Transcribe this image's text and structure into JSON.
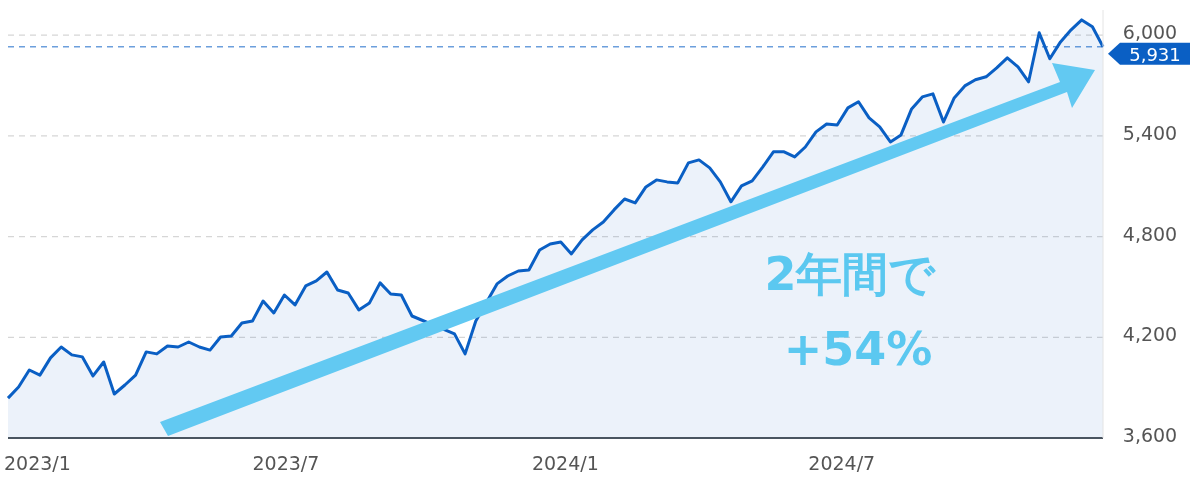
{
  "chart_data": {
    "type": "area",
    "xlim": [
      "2022-12-30",
      "2024-12-20"
    ],
    "ylim": [
      3600,
      6150
    ],
    "xticks": [
      {
        "value": "2023-01-01",
        "label": "2023/1"
      },
      {
        "value": "2023-07-01",
        "label": "2023/7"
      },
      {
        "value": "2024-01-01",
        "label": "2024/1"
      },
      {
        "value": "2024-07-01",
        "label": "2024/7"
      }
    ],
    "yticks": [
      {
        "value": 3600,
        "label": "3,600"
      },
      {
        "value": 4200,
        "label": "4,200"
      },
      {
        "value": 4800,
        "label": "4,800"
      },
      {
        "value": 5400,
        "label": "5,400"
      },
      {
        "value": 6000,
        "label": "6,000"
      }
    ],
    "grid": "y",
    "line_style": "solid",
    "x": [
      "2022-12-30",
      "2023-01-06",
      "2023-01-13",
      "2023-01-20",
      "2023-01-27",
      "2023-02-03",
      "2023-02-10",
      "2023-02-17",
      "2023-02-24",
      "2023-03-03",
      "2023-03-10",
      "2023-03-17",
      "2023-03-24",
      "2023-03-31",
      "2023-04-07",
      "2023-04-14",
      "2023-04-21",
      "2023-04-28",
      "2023-05-05",
      "2023-05-12",
      "2023-05-19",
      "2023-05-26",
      "2023-06-02",
      "2023-06-09",
      "2023-06-16",
      "2023-06-23",
      "2023-06-30",
      "2023-07-07",
      "2023-07-14",
      "2023-07-21",
      "2023-07-28",
      "2023-08-04",
      "2023-08-11",
      "2023-08-18",
      "2023-08-25",
      "2023-09-01",
      "2023-09-08",
      "2023-09-15",
      "2023-09-22",
      "2023-10-20",
      "2023-10-27",
      "2023-11-03",
      "2023-11-17",
      "2023-11-24",
      "2023-12-01",
      "2023-12-08",
      "2023-12-15",
      "2023-12-22",
      "2023-12-29",
      "2024-01-05",
      "2024-01-12",
      "2024-01-19",
      "2024-01-26",
      "2024-02-02",
      "2024-02-09",
      "2024-02-16",
      "2024-02-23",
      "2024-03-01",
      "2024-03-08",
      "2024-03-15",
      "2024-03-22",
      "2024-03-29",
      "2024-04-05",
      "2024-04-12",
      "2024-04-19",
      "2024-04-26",
      "2024-05-03",
      "2024-05-10",
      "2024-05-17",
      "2024-05-24",
      "2024-05-31",
      "2024-06-07",
      "2024-06-14",
      "2024-06-21",
      "2024-06-28",
      "2024-07-05",
      "2024-07-12",
      "2024-07-19",
      "2024-07-26",
      "2024-08-02",
      "2024-08-09",
      "2024-08-16",
      "2024-08-23",
      "2024-08-30",
      "2024-09-06",
      "2024-09-13",
      "2024-09-20",
      "2024-09-27",
      "2024-10-04",
      "2024-10-11",
      "2024-10-18",
      "2024-10-25",
      "2024-11-01",
      "2024-11-08",
      "2024-11-15",
      "2024-11-22",
      "2024-11-29",
      "2024-12-06",
      "2024-12-13",
      "2024-12-20"
    ],
    "series": [
      {
        "color": "#0a5fc4",
        "values": [
          3838,
          3904,
          4005,
          3975,
          4077,
          4142,
          4095,
          4083,
          3970,
          4053,
          3862,
          3916,
          3975,
          4113,
          4101,
          4148,
          4142,
          4172,
          4142,
          4124,
          4202,
          4208,
          4285,
          4297,
          4416,
          4345,
          4452,
          4393,
          4506,
          4536,
          4589,
          4482,
          4464,
          4363,
          4405,
          4524,
          4458,
          4452,
          4327,
          4220,
          4101,
          4297,
          4518,
          4565,
          4595,
          4601,
          4720,
          4756,
          4768,
          4697,
          4780,
          4840,
          4887,
          4959,
          5024,
          5001,
          5096,
          5138,
          5126,
          5120,
          5239,
          5257,
          5209,
          5126,
          5007,
          5102,
          5132,
          5215,
          5305,
          5305,
          5275,
          5334,
          5424,
          5471,
          5465,
          5567,
          5603,
          5507,
          5454,
          5364,
          5406,
          5561,
          5632,
          5650,
          5483,
          5626,
          5698,
          5734,
          5752,
          5805,
          5865,
          5811,
          5722,
          6014,
          5859,
          5960,
          6032,
          6091,
          6050,
          5931
        ]
      }
    ],
    "ref_lines": [
      {
        "axis": "y",
        "value": 5931,
        "label": "5,931",
        "color": "#0a5fc4",
        "line_style": "dashed"
      }
    ],
    "annotations": [
      "2年間で",
      "+54%"
    ]
  }
}
